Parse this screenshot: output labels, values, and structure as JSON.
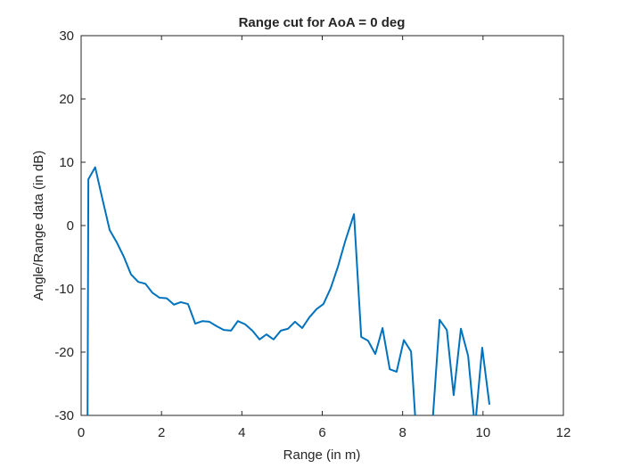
{
  "chart_data": {
    "type": "line",
    "title": "Range cut for AoA = 0 deg",
    "x_label": "Range (in m)",
    "y_label": "Angle/Range data (in dB)",
    "x": [
      0.155,
      0.18,
      0.35,
      0.53,
      0.71,
      0.89,
      1.06,
      1.24,
      1.42,
      1.6,
      1.77,
      1.95,
      2.13,
      2.31,
      2.48,
      2.66,
      2.84,
      3.02,
      3.19,
      3.37,
      3.55,
      3.73,
      3.9,
      4.08,
      4.26,
      4.44,
      4.61,
      4.79,
      4.97,
      5.15,
      5.32,
      5.5,
      5.68,
      5.86,
      6.03,
      6.21,
      6.39,
      6.57,
      6.79,
      6.97,
      7.14,
      7.32,
      7.5,
      7.68,
      7.85,
      8.03,
      8.21,
      8.39,
      8.56,
      8.74,
      8.92,
      9.1,
      9.27,
      9.45,
      9.63,
      9.8,
      9.98,
      10.16
    ],
    "series": [
      {
        "name": "Range cut",
        "color": "#0072bd",
        "values": [
          -40,
          7.3,
          9.2,
          4.2,
          -0.7,
          -2.7,
          -4.9,
          -7.7,
          -8.9,
          -9.2,
          -10.6,
          -11.4,
          -11.5,
          -12.5,
          -12.1,
          -12.4,
          -15.5,
          -15.1,
          -15.2,
          -15.9,
          -16.5,
          -16.6,
          -15.1,
          -15.6,
          -16.6,
          -18.0,
          -17.2,
          -18.0,
          -16.6,
          -16.3,
          -15.2,
          -16.2,
          -14.5,
          -13.2,
          -12.4,
          -9.9,
          -6.5,
          -2.5,
          1.8,
          -17.6,
          -18.2,
          -20.3,
          -16.2,
          -22.7,
          -23.1,
          -18.1,
          -19.9,
          -38,
          -42,
          -31.5,
          -14.9,
          -16.5,
          -26.8,
          -16.3,
          -20.6,
          -32,
          -19.3,
          -28.3
        ]
      }
    ],
    "xlim": [
      0,
      12
    ],
    "xticks": [
      0,
      2,
      4,
      6,
      8,
      10,
      12
    ],
    "ylim": [
      -30,
      30
    ],
    "yticks": [
      -30,
      -20,
      -10,
      0,
      10,
      20,
      30
    ]
  }
}
